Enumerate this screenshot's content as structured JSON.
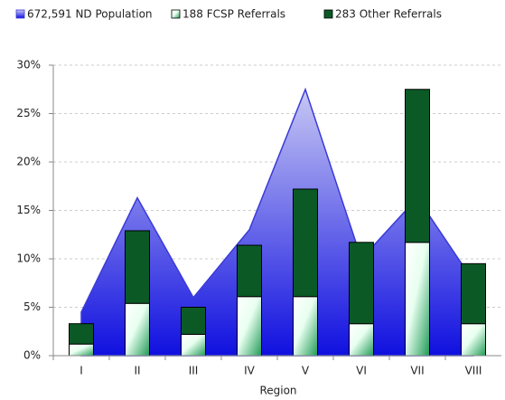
{
  "chart_data": {
    "type": "area-bar",
    "x_label": "Region",
    "categories": [
      "I",
      "II",
      "III",
      "IV",
      "V",
      "VI",
      "VII",
      "VIII"
    ],
    "series": [
      {
        "name": "672,591 ND Population",
        "color": "#3a3ad8",
        "kind": "area",
        "values": [
          4.5,
          16.3,
          6.0,
          13.0,
          27.5,
          10.0,
          16.3,
          7.7
        ]
      },
      {
        "name": "188 FCSP Referrals",
        "color": "#2fae6a",
        "kind": "bar",
        "values": [
          1.2,
          5.4,
          2.2,
          6.1,
          6.1,
          3.3,
          11.7,
          3.3
        ]
      },
      {
        "name": "283 Other Referrals",
        "color": "#0b5a26",
        "kind": "bar",
        "values": [
          2.1,
          7.5,
          2.8,
          5.3,
          11.1,
          8.4,
          15.8,
          6.2
        ]
      }
    ],
    "ylim": [
      0,
      30
    ],
    "yticks": [
      {
        "value": 0,
        "label": "0%"
      },
      {
        "value": 5,
        "label": "5%"
      },
      {
        "value": 10,
        "label": "10%"
      },
      {
        "value": 15,
        "label": "15%"
      },
      {
        "value": 20,
        "label": "20%"
      },
      {
        "value": 25,
        "label": "25%"
      },
      {
        "value": 30,
        "label": "30%"
      }
    ],
    "grid": true
  }
}
